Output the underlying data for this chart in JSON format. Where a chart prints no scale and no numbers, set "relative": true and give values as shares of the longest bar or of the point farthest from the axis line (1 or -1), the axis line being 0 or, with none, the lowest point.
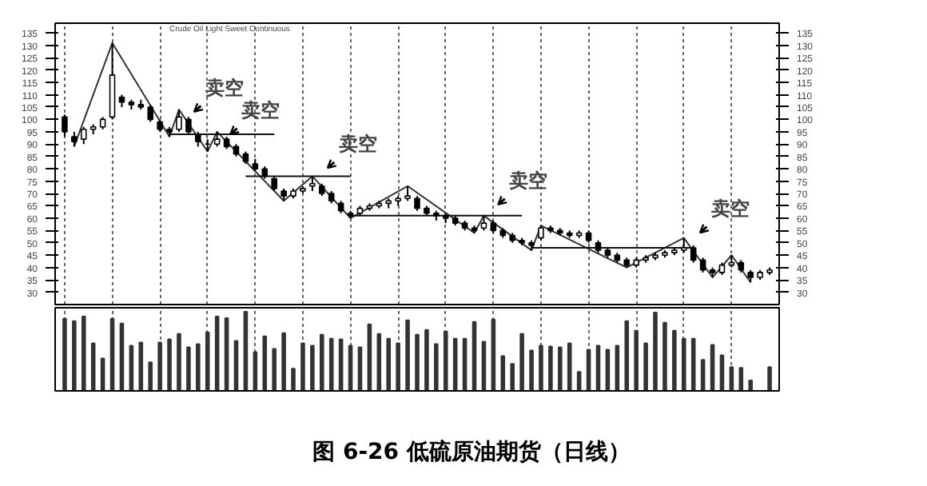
{
  "chart_data": [
    {
      "type": "candlestick",
      "title": "图 6-26  低硫原油期货（日线）",
      "subtitle": "Crude Oil Light Sweet Continuous",
      "categories": [
        null,
        null,
        null,
        null,
        null,
        null,
        null,
        null,
        null,
        null,
        null,
        null,
        null,
        null,
        null,
        null,
        null,
        null,
        null,
        null,
        null,
        null,
        null,
        null,
        null,
        null,
        null,
        null,
        null,
        null,
        null,
        null,
        null,
        null,
        null,
        null,
        null,
        null,
        null,
        null,
        null,
        null,
        null,
        null,
        null,
        null,
        null,
        null,
        null,
        null,
        null,
        null,
        null,
        null,
        null,
        null,
        null,
        null,
        null,
        null,
        null,
        null,
        null,
        null,
        null,
        null,
        null,
        null,
        null,
        null,
        null,
        null,
        null,
        null,
        null
      ],
      "ohlc": [
        [
          101,
          102,
          93,
          95
        ],
        [
          93,
          95,
          89,
          91
        ],
        [
          92,
          97,
          90,
          96
        ],
        [
          96,
          98,
          94,
          97
        ],
        [
          97,
          101,
          96,
          100
        ],
        [
          101,
          131,
          100,
          118
        ],
        [
          109,
          110,
          105,
          107
        ],
        [
          107,
          108,
          104,
          106
        ],
        [
          106,
          108,
          104,
          105
        ],
        [
          105,
          106,
          99,
          100
        ],
        [
          99,
          100,
          95,
          96
        ],
        [
          96,
          97,
          93,
          95
        ],
        [
          96,
          104,
          95,
          101
        ],
        [
          100,
          101,
          94,
          95
        ],
        [
          94,
          95,
          89,
          91
        ],
        [
          90,
          92,
          87,
          90
        ],
        [
          90,
          95,
          89,
          92
        ],
        [
          92,
          93,
          88,
          89
        ],
        [
          89,
          90,
          85,
          86
        ],
        [
          86,
          87,
          82,
          83
        ],
        [
          82,
          84,
          79,
          80
        ],
        [
          80,
          81,
          76,
          77
        ],
        [
          76,
          77,
          71,
          72
        ],
        [
          71,
          72,
          67,
          69
        ],
        [
          69,
          72,
          68,
          71
        ],
        [
          71,
          73,
          70,
          72
        ],
        [
          73,
          77,
          71,
          74
        ],
        [
          73,
          74,
          69,
          70
        ],
        [
          70,
          71,
          66,
          67
        ],
        [
          66,
          67,
          62,
          63
        ],
        [
          62,
          63,
          60,
          61
        ],
        [
          62,
          65,
          61,
          64
        ],
        [
          64,
          66,
          63,
          65
        ],
        [
          65,
          67,
          64,
          66
        ],
        [
          66,
          68,
          64,
          67
        ],
        [
          67,
          69,
          65,
          68
        ],
        [
          68,
          73,
          67,
          69
        ],
        [
          68,
          69,
          63,
          64
        ],
        [
          64,
          65,
          61,
          62
        ],
        [
          62,
          63,
          59,
          61
        ],
        [
          61,
          62,
          58,
          60
        ],
        [
          60,
          61,
          57,
          58
        ],
        [
          58,
          59,
          55,
          56
        ],
        [
          56,
          57,
          54,
          55
        ],
        [
          56,
          61,
          55,
          58
        ],
        [
          58,
          59,
          54,
          55
        ],
        [
          55,
          56,
          52,
          53
        ],
        [
          53,
          54,
          50,
          51
        ],
        [
          51,
          52,
          49,
          50
        ],
        [
          50,
          51,
          47,
          49
        ],
        [
          52,
          57,
          51,
          56
        ],
        [
          56,
          57,
          54,
          55
        ],
        [
          55,
          56,
          53,
          54
        ],
        [
          54,
          55,
          52,
          53
        ],
        [
          53,
          55,
          52,
          54
        ],
        [
          54,
          55,
          50,
          51
        ],
        [
          50,
          51,
          46,
          47
        ],
        [
          47,
          48,
          44,
          45
        ],
        [
          45,
          46,
          42,
          43
        ],
        [
          43,
          44,
          40,
          41
        ],
        [
          41,
          44,
          40,
          43
        ],
        [
          43,
          45,
          42,
          44
        ],
        [
          44,
          46,
          43,
          45
        ],
        [
          45,
          47,
          44,
          46
        ],
        [
          46,
          48,
          45,
          47
        ],
        [
          47,
          52,
          46,
          48
        ],
        [
          48,
          49,
          42,
          43
        ],
        [
          43,
          44,
          38,
          39
        ],
        [
          39,
          40,
          36,
          38
        ],
        [
          38,
          42,
          37,
          41
        ],
        [
          41,
          45,
          40,
          42
        ],
        [
          42,
          43,
          38,
          39
        ],
        [
          38,
          39,
          34,
          36
        ],
        [
          36,
          39,
          35,
          38
        ],
        [
          38,
          40,
          37,
          39
        ]
      ],
      "series": [
        {
          "type": "line",
          "color": "#333333",
          "values": [
            null,
            89,
            null,
            null,
            null,
            131,
            null,
            null,
            null,
            null,
            null,
            93,
            104,
            null,
            null,
            87,
            95,
            null,
            null,
            null,
            null,
            null,
            null,
            67,
            null,
            null,
            77,
            null,
            null,
            null,
            60,
            null,
            null,
            null,
            null,
            null,
            73,
            null,
            null,
            null,
            null,
            null,
            null,
            54,
            61,
            null,
            null,
            null,
            null,
            47,
            57,
            null,
            null,
            null,
            null,
            null,
            null,
            null,
            null,
            40,
            null,
            null,
            null,
            null,
            null,
            52,
            null,
            null,
            36,
            null,
            45,
            null,
            34,
            null,
            null
          ]
        },
        {
          "type": "line",
          "color": "#111111",
          "values": [
            null,
            null,
            null,
            null,
            null,
            null,
            null,
            null,
            null,
            null,
            null,
            94,
            94,
            94,
            94,
            94,
            94,
            94,
            94,
            94,
            94,
            94,
            94,
            null,
            null,
            null,
            null,
            null,
            null,
            null,
            null,
            null,
            null,
            null,
            null,
            null,
            null,
            null,
            null,
            null,
            null,
            null,
            null,
            null,
            null,
            null,
            null,
            null,
            null,
            null,
            null,
            null,
            null,
            null,
            null,
            null,
            null,
            null,
            null,
            null,
            null,
            null,
            null,
            null,
            null,
            null,
            null,
            null,
            null,
            null,
            null,
            null,
            null,
            null,
            null
          ]
        },
        {
          "type": "line",
          "color": "#111111",
          "values": [
            null,
            null,
            null,
            null,
            null,
            null,
            null,
            null,
            null,
            null,
            null,
            null,
            null,
            null,
            null,
            null,
            null,
            null,
            null,
            77,
            77,
            77,
            77,
            77,
            77,
            77,
            77,
            77,
            77,
            77,
            77,
            null,
            null,
            null,
            null,
            null,
            null,
            null,
            null,
            null,
            null,
            null,
            null,
            null,
            null,
            null,
            null,
            null,
            null,
            null,
            null,
            null,
            null,
            null,
            null,
            null,
            null,
            null,
            null,
            null,
            null,
            null,
            null,
            null,
            null,
            null,
            null,
            null,
            null,
            null,
            null,
            null,
            null,
            null,
            null
          ]
        },
        {
          "type": "line",
          "color": "#111111",
          "values": [
            null,
            null,
            null,
            null,
            null,
            null,
            null,
            null,
            null,
            null,
            null,
            null,
            null,
            null,
            null,
            null,
            null,
            null,
            null,
            null,
            null,
            null,
            null,
            null,
            null,
            null,
            null,
            null,
            null,
            null,
            61,
            61,
            61,
            61,
            61,
            61,
            61,
            61,
            61,
            61,
            61,
            61,
            61,
            61,
            61,
            61,
            61,
            61,
            61,
            null,
            null,
            null,
            null,
            null,
            null,
            null,
            null,
            null,
            null,
            null,
            null,
            null,
            null,
            null,
            null,
            null,
            null,
            null,
            null,
            null,
            null,
            null,
            null,
            null,
            null
          ]
        },
        {
          "type": "line",
          "color": "#111111",
          "values": [
            null,
            null,
            null,
            null,
            null,
            null,
            null,
            null,
            null,
            null,
            null,
            null,
            null,
            null,
            null,
            null,
            null,
            null,
            null,
            null,
            null,
            null,
            null,
            null,
            null,
            null,
            null,
            null,
            null,
            null,
            null,
            null,
            null,
            null,
            null,
            null,
            null,
            null,
            null,
            null,
            null,
            null,
            null,
            null,
            null,
            null,
            null,
            null,
            null,
            48,
            48,
            48,
            48,
            48,
            48,
            48,
            48,
            48,
            48,
            48,
            48,
            48,
            48,
            48,
            48,
            48,
            48,
            null,
            null,
            null,
            null,
            null,
            null,
            null,
            null
          ]
        }
      ],
      "annotations": [
        "卖空",
        "卖空",
        "卖空",
        "卖空",
        "卖空"
      ],
      "ylim": [
        25,
        139
      ],
      "yticks": [
        30,
        35,
        40,
        45,
        50,
        55,
        60,
        65,
        70,
        75,
        80,
        85,
        90,
        95,
        100,
        105,
        110,
        115,
        120,
        125,
        130,
        135
      ],
      "y2lim": [
        25,
        139
      ],
      "y2ticks": [
        30,
        35,
        40,
        45,
        50,
        55,
        60,
        65,
        70,
        75,
        80,
        85,
        90,
        95,
        100,
        105,
        110,
        115,
        120,
        125,
        130,
        135
      ],
      "grid": "x",
      "tick_labels": "y"
    },
    {
      "type": "bar",
      "relative": true,
      "grid": "x",
      "tick_labels": false,
      "categories": [
        null,
        null,
        null,
        null,
        null,
        null,
        null,
        null,
        null,
        null,
        null,
        null,
        null,
        null,
        null,
        null,
        null,
        null,
        null,
        null,
        null,
        null,
        null,
        null,
        null,
        null,
        null,
        null,
        null,
        null,
        null,
        null,
        null,
        null,
        null,
        null,
        null,
        null,
        null,
        null,
        null,
        null,
        null,
        null,
        null,
        null,
        null,
        null,
        null,
        null,
        null,
        null,
        null,
        null,
        null,
        null,
        null,
        null,
        null,
        null,
        null,
        null,
        null,
        null,
        null,
        null,
        null,
        null,
        null,
        null,
        null,
        null,
        null,
        null,
        null
      ],
      "series": [
        {
          "color": "#333333",
          "values": [
            0.91,
            0.88,
            0.94,
            0.6,
            0.41,
            0.91,
            0.85,
            0.57,
            0.61,
            0.36,
            0.61,
            0.65,
            0.72,
            0.55,
            0.59,
            0.74,
            0.94,
            0.92,
            0.63,
            1.0,
            0.49,
            0.69,
            0.53,
            0.73,
            0.28,
            0.6,
            0.57,
            0.71,
            0.66,
            0.65,
            0.57,
            0.55,
            0.84,
            0.72,
            0.66,
            0.6,
            0.89,
            0.71,
            0.77,
            0.59,
            0.75,
            0.66,
            0.66,
            0.87,
            0.62,
            0.9,
            0.44,
            0.34,
            0.72,
            0.51,
            0.57,
            0.56,
            0.55,
            0.6,
            0.24,
            0.52,
            0.57,
            0.52,
            0.57,
            0.88,
            0.76,
            0.6,
            0.99,
            0.86,
            0.76,
            0.66,
            0.66,
            0.39,
            0.58,
            0.45,
            0.3,
            0.29,
            0.13,
            null,
            0.3
          ]
        }
      ]
    }
  ]
}
